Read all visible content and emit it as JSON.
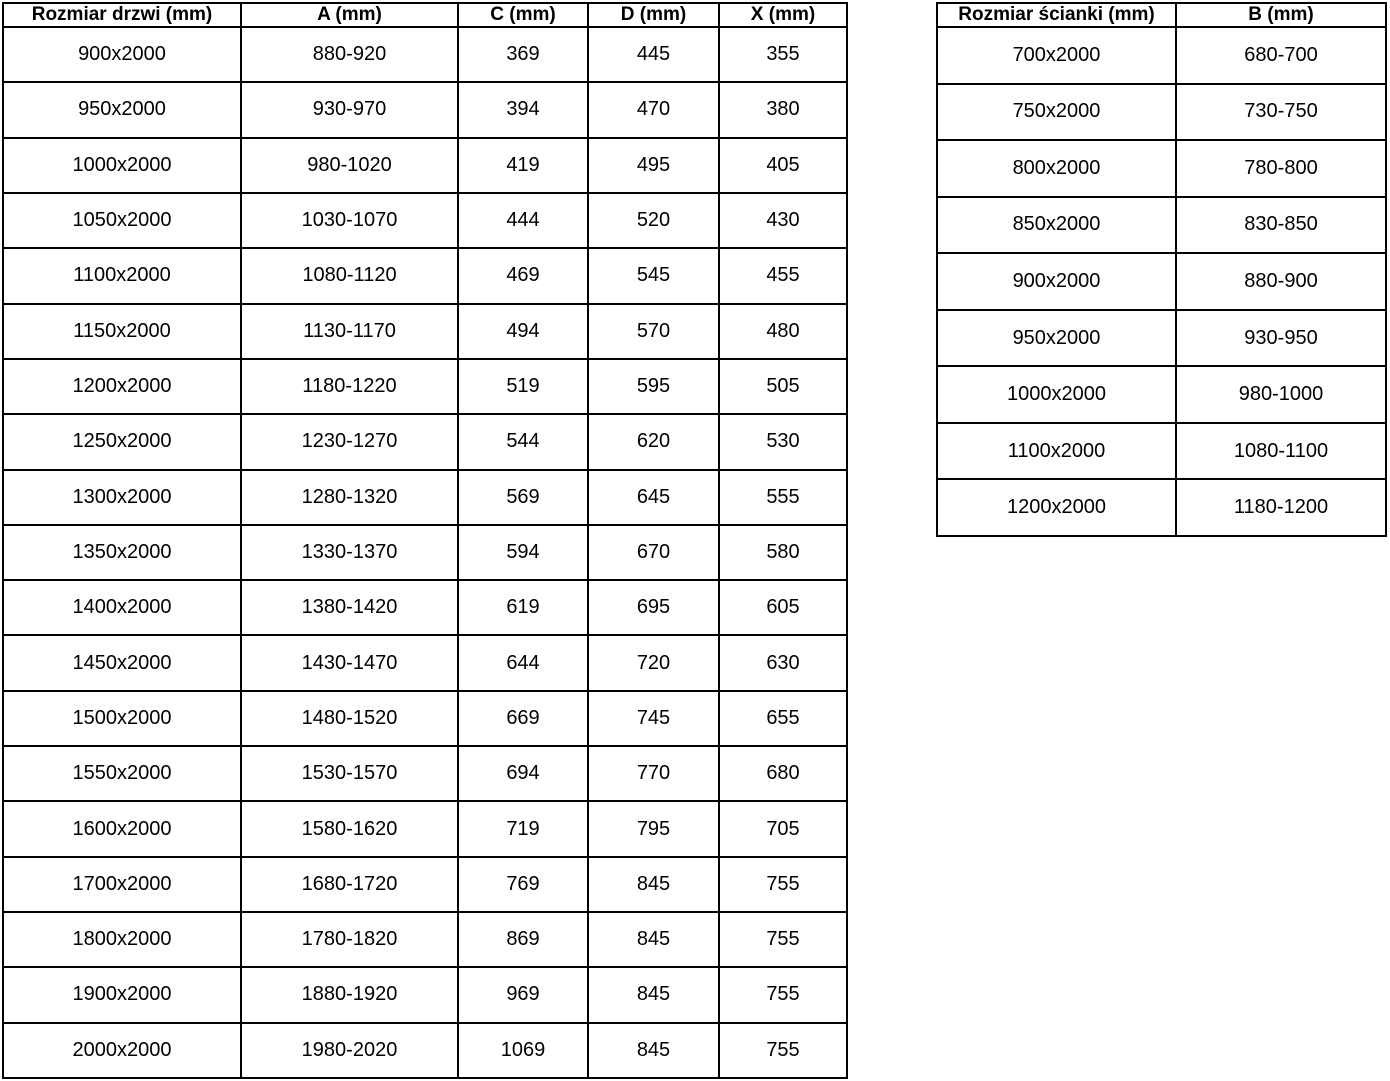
{
  "colors": {
    "background": "#ffffff",
    "border": "#000000",
    "text": "#000000"
  },
  "left_table": {
    "name": "door-dimensions-table",
    "headers": [
      "Rozmiar drzwi (mm)",
      "A (mm)",
      "C (mm)",
      "D (mm)",
      "X (mm)"
    ],
    "rows": [
      [
        "900x2000",
        "880-920",
        "369",
        "445",
        "355"
      ],
      [
        "950x2000",
        "930-970",
        "394",
        "470",
        "380"
      ],
      [
        "1000x2000",
        "980-1020",
        "419",
        "495",
        "405"
      ],
      [
        "1050x2000",
        "1030-1070",
        "444",
        "520",
        "430"
      ],
      [
        "1100x2000",
        "1080-1120",
        "469",
        "545",
        "455"
      ],
      [
        "1150x2000",
        "1130-1170",
        "494",
        "570",
        "480"
      ],
      [
        "1200x2000",
        "1180-1220",
        "519",
        "595",
        "505"
      ],
      [
        "1250x2000",
        "1230-1270",
        "544",
        "620",
        "530"
      ],
      [
        "1300x2000",
        "1280-1320",
        "569",
        "645",
        "555"
      ],
      [
        "1350x2000",
        "1330-1370",
        "594",
        "670",
        "580"
      ],
      [
        "1400x2000",
        "1380-1420",
        "619",
        "695",
        "605"
      ],
      [
        "1450x2000",
        "1430-1470",
        "644",
        "720",
        "630"
      ],
      [
        "1500x2000",
        "1480-1520",
        "669",
        "745",
        "655"
      ],
      [
        "1550x2000",
        "1530-1570",
        "694",
        "770",
        "680"
      ],
      [
        "1600x2000",
        "1580-1620",
        "719",
        "795",
        "705"
      ],
      [
        "1700x2000",
        "1680-1720",
        "769",
        "845",
        "755"
      ],
      [
        "1800x2000",
        "1780-1820",
        "869",
        "845",
        "755"
      ],
      [
        "1900x2000",
        "1880-1920",
        "969",
        "845",
        "755"
      ],
      [
        "2000x2000",
        "1980-2020",
        "1069",
        "845",
        "755"
      ]
    ]
  },
  "right_table": {
    "name": "wall-panel-dimensions-table",
    "headers": [
      "Rozmiar ścianki (mm)",
      "B (mm)"
    ],
    "rows": [
      [
        "700x2000",
        "680-700"
      ],
      [
        "750x2000",
        "730-750"
      ],
      [
        "800x2000",
        "780-800"
      ],
      [
        "850x2000",
        "830-850"
      ],
      [
        "900x2000",
        "880-900"
      ],
      [
        "950x2000",
        "930-950"
      ],
      [
        "1000x2000",
        "980-1000"
      ],
      [
        "1100x2000",
        "1080-1100"
      ],
      [
        "1200x2000",
        "1180-1200"
      ]
    ]
  }
}
